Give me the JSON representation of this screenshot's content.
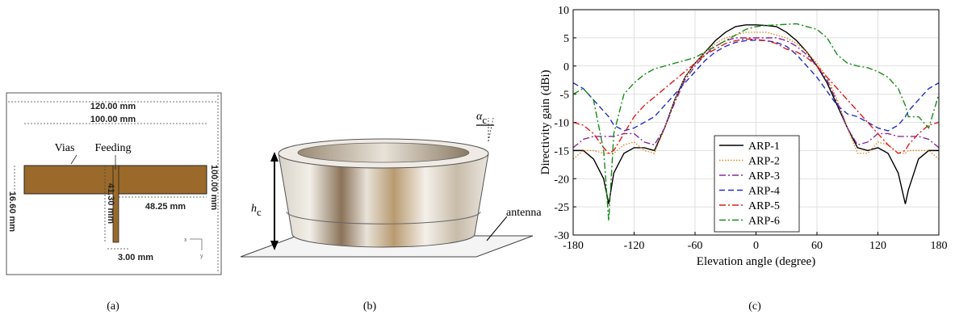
{
  "panel_a": {
    "dims": [
      "120.00 mm",
      "100.00 mm",
      "100.00 mm",
      "16.60 mm",
      "41.30 mm",
      "48.25 mm",
      "3.00 mm"
    ],
    "labels": [
      "Vias",
      "Feeding"
    ],
    "axes": [
      "x",
      "y"
    ],
    "caption": "(a)"
  },
  "panel_b": {
    "h": "h",
    "h_sub": "c",
    "alpha": "α",
    "alpha_sub": "c",
    "antenna": "antenna",
    "caption": "(b)"
  },
  "chart_data": {
    "type": "line",
    "caption": "(c)",
    "x_label": "Elevation angle (degree)",
    "y_label": "Directivity gain (dBi)",
    "xlim": [
      -180,
      180
    ],
    "xticks": [
      -180,
      -120,
      -60,
      0,
      60,
      120,
      180
    ],
    "ylim": [
      -30,
      10
    ],
    "yticks": [
      -30,
      -25,
      -20,
      -15,
      -10,
      -5,
      0,
      5,
      10
    ],
    "grid": true,
    "legend": "lower left",
    "x": [
      -180,
      -170,
      -160,
      -150,
      -145,
      -140,
      -130,
      -120,
      -110,
      -100,
      -90,
      -80,
      -70,
      -60,
      -50,
      -40,
      -30,
      -20,
      -10,
      0,
      10,
      20,
      30,
      40,
      50,
      60,
      70,
      80,
      90,
      100,
      110,
      120,
      130,
      140,
      147,
      150,
      160,
      170,
      180
    ],
    "series": [
      {
        "name": "ARP-1",
        "color": "#000000",
        "style": "solid",
        "values": [
          -15,
          -15,
          -16.5,
          -20,
          -24.5,
          -19,
          -15.5,
          -14.5,
          -14.5,
          -15,
          -11,
          -6,
          -2,
          0.5,
          2.5,
          4.5,
          6,
          7,
          7.3,
          7.3,
          7.2,
          7,
          6,
          4.5,
          2.5,
          0,
          -3,
          -7,
          -11,
          -14.5,
          -15,
          -14.5,
          -15.5,
          -19,
          -24.5,
          -22,
          -16.5,
          -15,
          -15
        ]
      },
      {
        "name": "ARP-2",
        "color": "#e08a1e",
        "style": "dotted",
        "values": [
          -16.5,
          -15,
          -15,
          -15.5,
          -15.5,
          -15.5,
          -14,
          -13.5,
          -15,
          -15.5,
          -11,
          -6,
          -2,
          0.5,
          2.5,
          4,
          5,
          5.5,
          6,
          6,
          6,
          5.5,
          5,
          4,
          2.5,
          0.5,
          -2,
          -6,
          -11,
          -15.5,
          -15.5,
          -13.5,
          -14,
          -15.5,
          -15.5,
          -15,
          -15,
          -15,
          -16.5
        ]
      },
      {
        "name": "ARP-3",
        "color": "#8a2a9a",
        "style": "dashdot",
        "values": [
          -14.5,
          -13,
          -12.5,
          -12.5,
          -12.5,
          -12.5,
          -12,
          -12,
          -13.5,
          -14,
          -11,
          -6.5,
          -2.5,
          0,
          2,
          3.5,
          4.5,
          5,
          5,
          5,
          5,
          5,
          4.5,
          3.5,
          2,
          0,
          -2.5,
          -6.5,
          -11,
          -14,
          -13.5,
          -12,
          -12,
          -12.5,
          -12.5,
          -12.5,
          -12.5,
          -13,
          -14.5
        ]
      },
      {
        "name": "ARP-4",
        "color": "#1f2fc8",
        "style": "dashed",
        "values": [
          -3,
          -4,
          -6,
          -8,
          -9,
          -10.5,
          -11.5,
          -11,
          -10,
          -9,
          -7,
          -5,
          -3,
          -1,
          1,
          2.5,
          3.5,
          4.2,
          4.5,
          4.6,
          4.5,
          4.2,
          3.5,
          2,
          0,
          -2,
          -4.5,
          -7,
          -8.5,
          -9,
          -10,
          -11,
          -11.5,
          -10.5,
          -9,
          -8,
          -6,
          -4,
          -3
        ]
      },
      {
        "name": "ARP-5",
        "color": "#e01a1a",
        "style": "dashdot",
        "values": [
          -10,
          -10.5,
          -12,
          -14.5,
          -15.5,
          -15,
          -12,
          -9,
          -7,
          -5.5,
          -4,
          -2.5,
          -1,
          0.5,
          2,
          3,
          4,
          4.5,
          4.8,
          4.7,
          4.5,
          4,
          3,
          2.5,
          1.5,
          0,
          -2,
          -4,
          -6,
          -8,
          -10,
          -12,
          -14,
          -15.5,
          -15,
          -14,
          -12,
          -10.5,
          -10
        ]
      },
      {
        "name": "ARP-6",
        "color": "#1a8a1a",
        "style": "dashdot",
        "values": [
          -5,
          -4,
          -6,
          -15,
          -27.5,
          -12,
          -5,
          -3,
          -1.5,
          -0.5,
          0,
          0.5,
          1,
          1.5,
          2.5,
          3.5,
          4.5,
          5.5,
          6.5,
          7,
          7.2,
          7.3,
          7.4,
          7.5,
          7,
          6.5,
          5,
          2,
          0.5,
          0,
          -0.3,
          -1,
          -2,
          -4,
          -7,
          -9,
          -9,
          -11,
          -5
        ]
      }
    ]
  }
}
